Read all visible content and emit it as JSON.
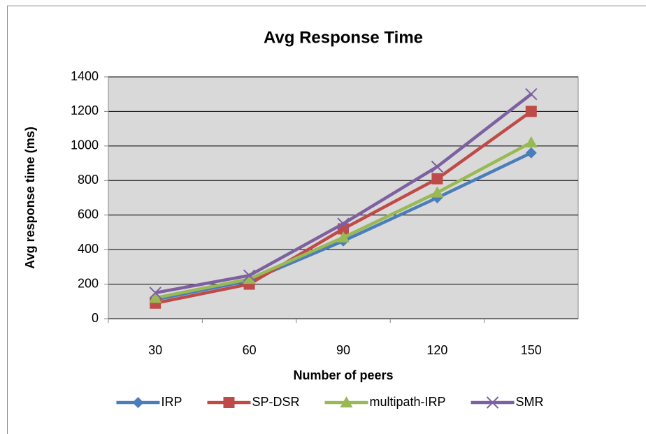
{
  "chart_data": {
    "type": "line",
    "title": "Avg Response Time",
    "xlabel": "Number of peers",
    "ylabel": "Avg response time (ms)",
    "categories": [
      "30",
      "60",
      "90",
      "120",
      "150"
    ],
    "series": [
      {
        "name": "IRP",
        "color": "#4a7ebb",
        "marker": "diamond",
        "values": [
          110,
          220,
          450,
          700,
          960
        ]
      },
      {
        "name": "SP-DSR",
        "color": "#be4b48",
        "marker": "square",
        "values": [
          90,
          200,
          520,
          810,
          1200
        ]
      },
      {
        "name": "multipath-IRP",
        "color": "#98b954",
        "marker": "triangle",
        "values": [
          120,
          230,
          470,
          730,
          1020
        ]
      },
      {
        "name": "SMR",
        "color": "#7d60a0",
        "marker": "x",
        "values": [
          150,
          250,
          550,
          880,
          1300
        ]
      }
    ],
    "ylim": [
      0,
      1400
    ],
    "yticks": [
      0,
      200,
      400,
      600,
      800,
      1000,
      1200,
      1400
    ],
    "grid": true,
    "legend": "bottom"
  }
}
